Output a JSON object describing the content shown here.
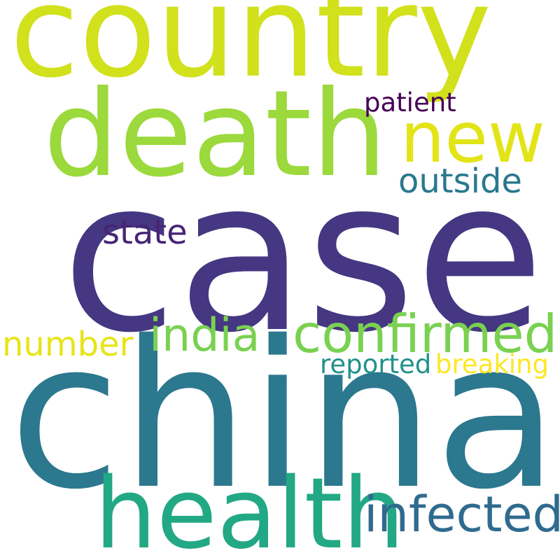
{
  "word_cloud": {
    "background": "#ffffff",
    "words": {
      "country": {
        "text": "country",
        "color": "#d1e11c"
      },
      "case": {
        "text": "case",
        "color": "#453781"
      },
      "china": {
        "text": "china",
        "color": "#2c788e"
      },
      "death": {
        "text": "death",
        "color": "#9bd93c"
      },
      "health": {
        "text": "health",
        "color": "#22a884"
      },
      "new": {
        "text": "new",
        "color": "#e2e418"
      },
      "confirmed": {
        "text": "confirmed",
        "color": "#7ad151"
      },
      "india": {
        "text": "india",
        "color": "#7ad151"
      },
      "infected": {
        "text": "infected",
        "color": "#2f6b8e"
      },
      "outside": {
        "text": "outside",
        "color": "#2a788e"
      },
      "state": {
        "text": "state",
        "color": "#482475"
      },
      "number": {
        "text": "number",
        "color": "#e8e419"
      },
      "patient": {
        "text": "patient",
        "color": "#440154"
      },
      "reported": {
        "text": "reported",
        "color": "#21918c"
      },
      "breaking": {
        "text": "breaking",
        "color": "#fde725"
      }
    }
  }
}
